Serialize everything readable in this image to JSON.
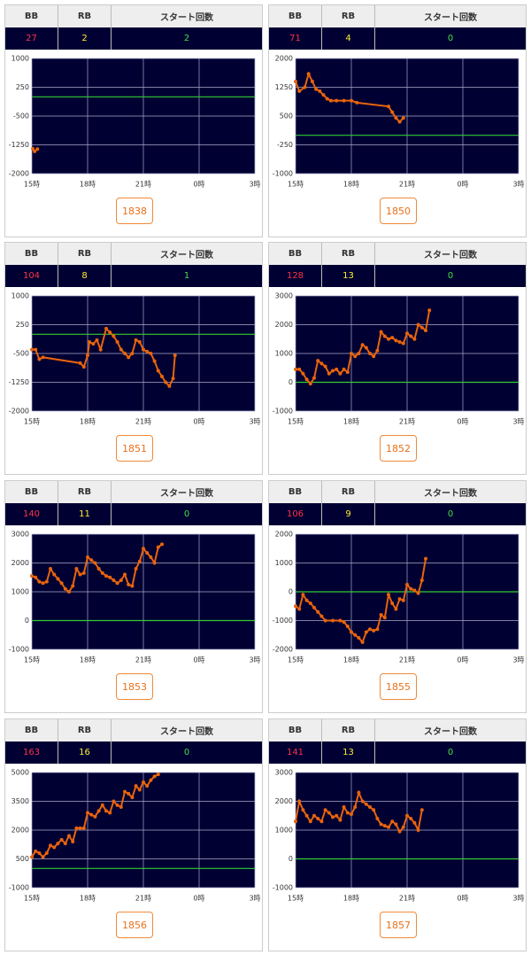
{
  "headers": [
    "BB",
    "RB",
    "スタート回数"
  ],
  "x_axis": {
    "xlim": [
      15,
      27
    ],
    "xticks": [
      {
        "value": 15,
        "label": "15時"
      },
      {
        "value": 18,
        "label": "18時"
      },
      {
        "value": 21,
        "label": "21時"
      },
      {
        "value": 24,
        "label": "0時"
      },
      {
        "value": 27,
        "label": "3時"
      }
    ]
  },
  "panels": [
    {
      "bb": "27",
      "rb": "2",
      "start": "2",
      "button": "1838",
      "chart": {
        "type": "line",
        "color": "#e8640c",
        "reference_line": 0,
        "reference_color": "#33cc33",
        "grid": true,
        "ylim": [
          -2000,
          1000
        ],
        "yticks": [
          1000,
          250,
          -500,
          -1250,
          -2000
        ],
        "x": [
          15.05,
          15.15,
          15.3
        ],
        "values": [
          -1350,
          -1420,
          -1360
        ]
      }
    },
    {
      "bb": "71",
      "rb": "4",
      "start": "0",
      "button": "1850",
      "chart": {
        "type": "line",
        "color": "#e8640c",
        "reference_line": 0,
        "reference_color": "#33cc33",
        "grid": true,
        "ylim": [
          -1000,
          2000
        ],
        "yticks": [
          2000,
          1250,
          500,
          -250,
          -1000
        ],
        "x": [
          15.0,
          15.2,
          15.5,
          15.7,
          15.9,
          16.1,
          16.3,
          16.5,
          16.7,
          16.9,
          17.2,
          17.6,
          18.0,
          18.3,
          20.0,
          20.2,
          20.4,
          20.6,
          20.8
        ],
        "values": [
          1400,
          1150,
          1250,
          1600,
          1400,
          1200,
          1150,
          1050,
          950,
          900,
          900,
          900,
          900,
          850,
          750,
          600,
          450,
          350,
          450
        ]
      }
    },
    {
      "bb": "104",
      "rb": "8",
      "start": "1",
      "button": "1851",
      "chart": {
        "type": "line",
        "color": "#e8640c",
        "reference_line": 0,
        "reference_color": "#33cc33",
        "grid": true,
        "ylim": [
          -2000,
          1000
        ],
        "yticks": [
          1000,
          250,
          -500,
          -1250,
          -2000
        ],
        "x": [
          15.0,
          15.2,
          15.4,
          15.6,
          17.6,
          17.8,
          18.0,
          18.1,
          18.3,
          18.5,
          18.7,
          19.0,
          19.2,
          19.4,
          19.6,
          19.8,
          20.0,
          20.2,
          20.4,
          20.6,
          20.8,
          21.0,
          21.2,
          21.4,
          21.6,
          21.8,
          22.0,
          22.2,
          22.4,
          22.6,
          22.7
        ],
        "values": [
          -400,
          -400,
          -650,
          -600,
          -750,
          -850,
          -550,
          -200,
          -250,
          -150,
          -400,
          150,
          50,
          -50,
          -200,
          -400,
          -500,
          -600,
          -500,
          -150,
          -200,
          -400,
          -450,
          -500,
          -700,
          -950,
          -1100,
          -1250,
          -1350,
          -1150,
          -550
        ]
      }
    },
    {
      "bb": "128",
      "rb": "13",
      "start": "0",
      "button": "1852",
      "chart": {
        "type": "line",
        "color": "#e8640c",
        "reference_line": 0,
        "reference_color": "#33cc33",
        "grid": true,
        "ylim": [
          -1000,
          3000
        ],
        "yticks": [
          3000,
          2000,
          1000,
          0,
          -1000
        ],
        "x": [
          15.0,
          15.2,
          15.4,
          15.6,
          15.8,
          16.0,
          16.2,
          16.4,
          16.6,
          16.8,
          17.0,
          17.2,
          17.4,
          17.6,
          17.8,
          18.0,
          18.2,
          18.4,
          18.6,
          18.8,
          19.0,
          19.2,
          19.4,
          19.6,
          19.8,
          20.0,
          20.2,
          20.4,
          20.6,
          20.8,
          21.0,
          21.2,
          21.4,
          21.6,
          21.8,
          22.0,
          22.2
        ],
        "values": [
          450,
          450,
          300,
          100,
          -50,
          150,
          750,
          650,
          550,
          300,
          400,
          450,
          300,
          450,
          350,
          1000,
          900,
          1000,
          1300,
          1200,
          1000,
          900,
          1100,
          1750,
          1600,
          1500,
          1550,
          1450,
          1400,
          1350,
          1700,
          1600,
          1500,
          2000,
          1900,
          1800,
          2500
        ]
      }
    },
    {
      "bb": "140",
      "rb": "11",
      "start": "0",
      "button": "1853",
      "chart": {
        "type": "line",
        "color": "#e8640c",
        "reference_line": 0,
        "reference_color": "#33cc33",
        "grid": true,
        "ylim": [
          -1000,
          3000
        ],
        "yticks": [
          3000,
          2000,
          1000,
          0,
          -1000
        ],
        "x": [
          15.0,
          15.2,
          15.4,
          15.6,
          15.8,
          16.0,
          16.2,
          16.4,
          16.6,
          16.8,
          17.0,
          17.2,
          17.4,
          17.6,
          17.8,
          18.0,
          18.2,
          18.4,
          18.6,
          18.8,
          19.0,
          19.2,
          19.4,
          19.6,
          19.8,
          20.0,
          20.2,
          20.4,
          20.6,
          20.8,
          21.0,
          21.2,
          21.4,
          21.6,
          21.8,
          22.0
        ],
        "values": [
          1550,
          1500,
          1350,
          1300,
          1350,
          1800,
          1600,
          1450,
          1300,
          1100,
          1000,
          1200,
          1800,
          1600,
          1650,
          2200,
          2100,
          2000,
          1800,
          1650,
          1550,
          1500,
          1400,
          1300,
          1400,
          1600,
          1250,
          1200,
          1800,
          2050,
          2500,
          2350,
          2200,
          2000,
          2550,
          2650
        ]
      }
    },
    {
      "bb": "106",
      "rb": "9",
      "start": "0",
      "button": "1855",
      "chart": {
        "type": "line",
        "color": "#e8640c",
        "reference_line": 0,
        "reference_color": "#33cc33",
        "grid": true,
        "ylim": [
          -2000,
          2000
        ],
        "yticks": [
          2000,
          1000,
          0,
          -1000,
          -2000
        ],
        "x": [
          15.0,
          15.2,
          15.4,
          15.6,
          15.8,
          16.0,
          16.2,
          16.4,
          16.6,
          17.0,
          17.4,
          17.6,
          17.8,
          18.0,
          18.2,
          18.4,
          18.6,
          18.8,
          19.0,
          19.2,
          19.4,
          19.6,
          19.8,
          20.0,
          20.2,
          20.4,
          20.6,
          20.8,
          21.0,
          21.2,
          21.4,
          21.6,
          21.8,
          22.0
        ],
        "values": [
          -500,
          -600,
          -100,
          -300,
          -400,
          -550,
          -700,
          -850,
          -1000,
          -1000,
          -1000,
          -1050,
          -1200,
          -1400,
          -1500,
          -1600,
          -1750,
          -1400,
          -1300,
          -1350,
          -1300,
          -800,
          -900,
          -100,
          -400,
          -600,
          -250,
          -300,
          250,
          100,
          50,
          -50,
          400,
          1150
        ]
      }
    },
    {
      "bb": "163",
      "rb": "16",
      "start": "0",
      "button": "1856",
      "chart": {
        "type": "line",
        "color": "#e8640c",
        "reference_line": 0,
        "reference_color": "#33cc33",
        "grid": true,
        "ylim": [
          -1000,
          5000
        ],
        "yticks": [
          5000,
          3500,
          2000,
          500,
          -1000
        ],
        "x": [
          15.0,
          15.2,
          15.4,
          15.6,
          15.8,
          16.0,
          16.2,
          16.4,
          16.6,
          16.8,
          17.0,
          17.2,
          17.4,
          17.6,
          17.8,
          18.0,
          18.2,
          18.4,
          18.6,
          18.8,
          19.0,
          19.2,
          19.4,
          19.6,
          19.8,
          20.0,
          20.2,
          20.4,
          20.6,
          20.8,
          21.0,
          21.2,
          21.4,
          21.6,
          21.8
        ],
        "values": [
          600,
          900,
          800,
          600,
          800,
          1200,
          1100,
          1300,
          1500,
          1300,
          1700,
          1400,
          2100,
          2100,
          2100,
          2900,
          2800,
          2700,
          3000,
          3300,
          3000,
          2900,
          3500,
          3300,
          3200,
          4000,
          3900,
          3700,
          4300,
          4100,
          4500,
          4300,
          4600,
          4800,
          4900
        ]
      }
    },
    {
      "bb": "141",
      "rb": "13",
      "start": "0",
      "button": "1857",
      "chart": {
        "type": "line",
        "color": "#e8640c",
        "reference_line": 0,
        "reference_color": "#33cc33",
        "grid": true,
        "ylim": [
          -1000,
          3000
        ],
        "yticks": [
          3000,
          2000,
          1000,
          0,
          -1000
        ],
        "x": [
          15.0,
          15.2,
          15.4,
          15.6,
          15.8,
          16.0,
          16.2,
          16.4,
          16.6,
          16.8,
          17.0,
          17.2,
          17.4,
          17.6,
          17.8,
          18.0,
          18.2,
          18.4,
          18.6,
          18.8,
          19.0,
          19.2,
          19.4,
          19.6,
          19.8,
          20.0,
          20.2,
          20.4,
          20.6,
          20.8,
          21.0,
          21.2,
          21.4,
          21.6,
          21.8
        ],
        "values": [
          1300,
          2000,
          1700,
          1500,
          1300,
          1500,
          1400,
          1300,
          1700,
          1600,
          1450,
          1500,
          1350,
          1800,
          1600,
          1550,
          1800,
          2300,
          2000,
          1900,
          1800,
          1700,
          1400,
          1200,
          1150,
          1100,
          1300,
          1200,
          950,
          1100,
          1500,
          1400,
          1250,
          1000,
          1700
        ]
      }
    }
  ]
}
